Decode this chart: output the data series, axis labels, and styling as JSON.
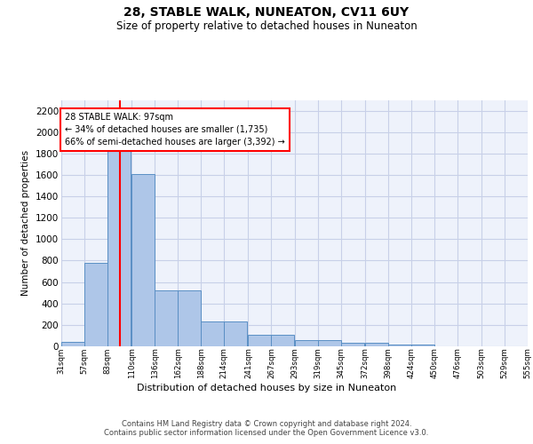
{
  "title": "28, STABLE WALK, NUNEATON, CV11 6UY",
  "subtitle": "Size of property relative to detached houses in Nuneaton",
  "xlabel": "Distribution of detached houses by size in Nuneaton",
  "ylabel": "Number of detached properties",
  "bins": [
    31,
    57,
    83,
    110,
    136,
    162,
    188,
    214,
    241,
    267,
    293,
    319,
    345,
    372,
    398,
    424,
    450,
    476,
    503,
    529,
    555
  ],
  "counts": [
    45,
    780,
    1830,
    1610,
    520,
    520,
    230,
    230,
    105,
    105,
    55,
    55,
    35,
    35,
    20,
    20,
    0,
    0,
    0,
    0
  ],
  "bar_color": "#aec6e8",
  "bar_edge_color": "#5a8fc4",
  "property_line_x": 97,
  "property_line_color": "red",
  "annotation_text": "28 STABLE WALK: 97sqm\n← 34% of detached houses are smaller (1,735)\n66% of semi-detached houses are larger (3,392) →",
  "annotation_box_color": "white",
  "annotation_box_edge_color": "red",
  "ylim": [
    0,
    2300
  ],
  "yticks": [
    0,
    200,
    400,
    600,
    800,
    1000,
    1200,
    1400,
    1600,
    1800,
    2000,
    2200
  ],
  "tick_labels": [
    "31sqm",
    "57sqm",
    "83sqm",
    "110sqm",
    "136sqm",
    "162sqm",
    "188sqm",
    "214sqm",
    "241sqm",
    "267sqm",
    "293sqm",
    "319sqm",
    "345sqm",
    "372sqm",
    "398sqm",
    "424sqm",
    "450sqm",
    "476sqm",
    "503sqm",
    "529sqm",
    "555sqm"
  ],
  "footer": "Contains HM Land Registry data © Crown copyright and database right 2024.\nContains public sector information licensed under the Open Government Licence v3.0.",
  "bg_color": "#eef2fb",
  "grid_color": "#c8d0e8"
}
